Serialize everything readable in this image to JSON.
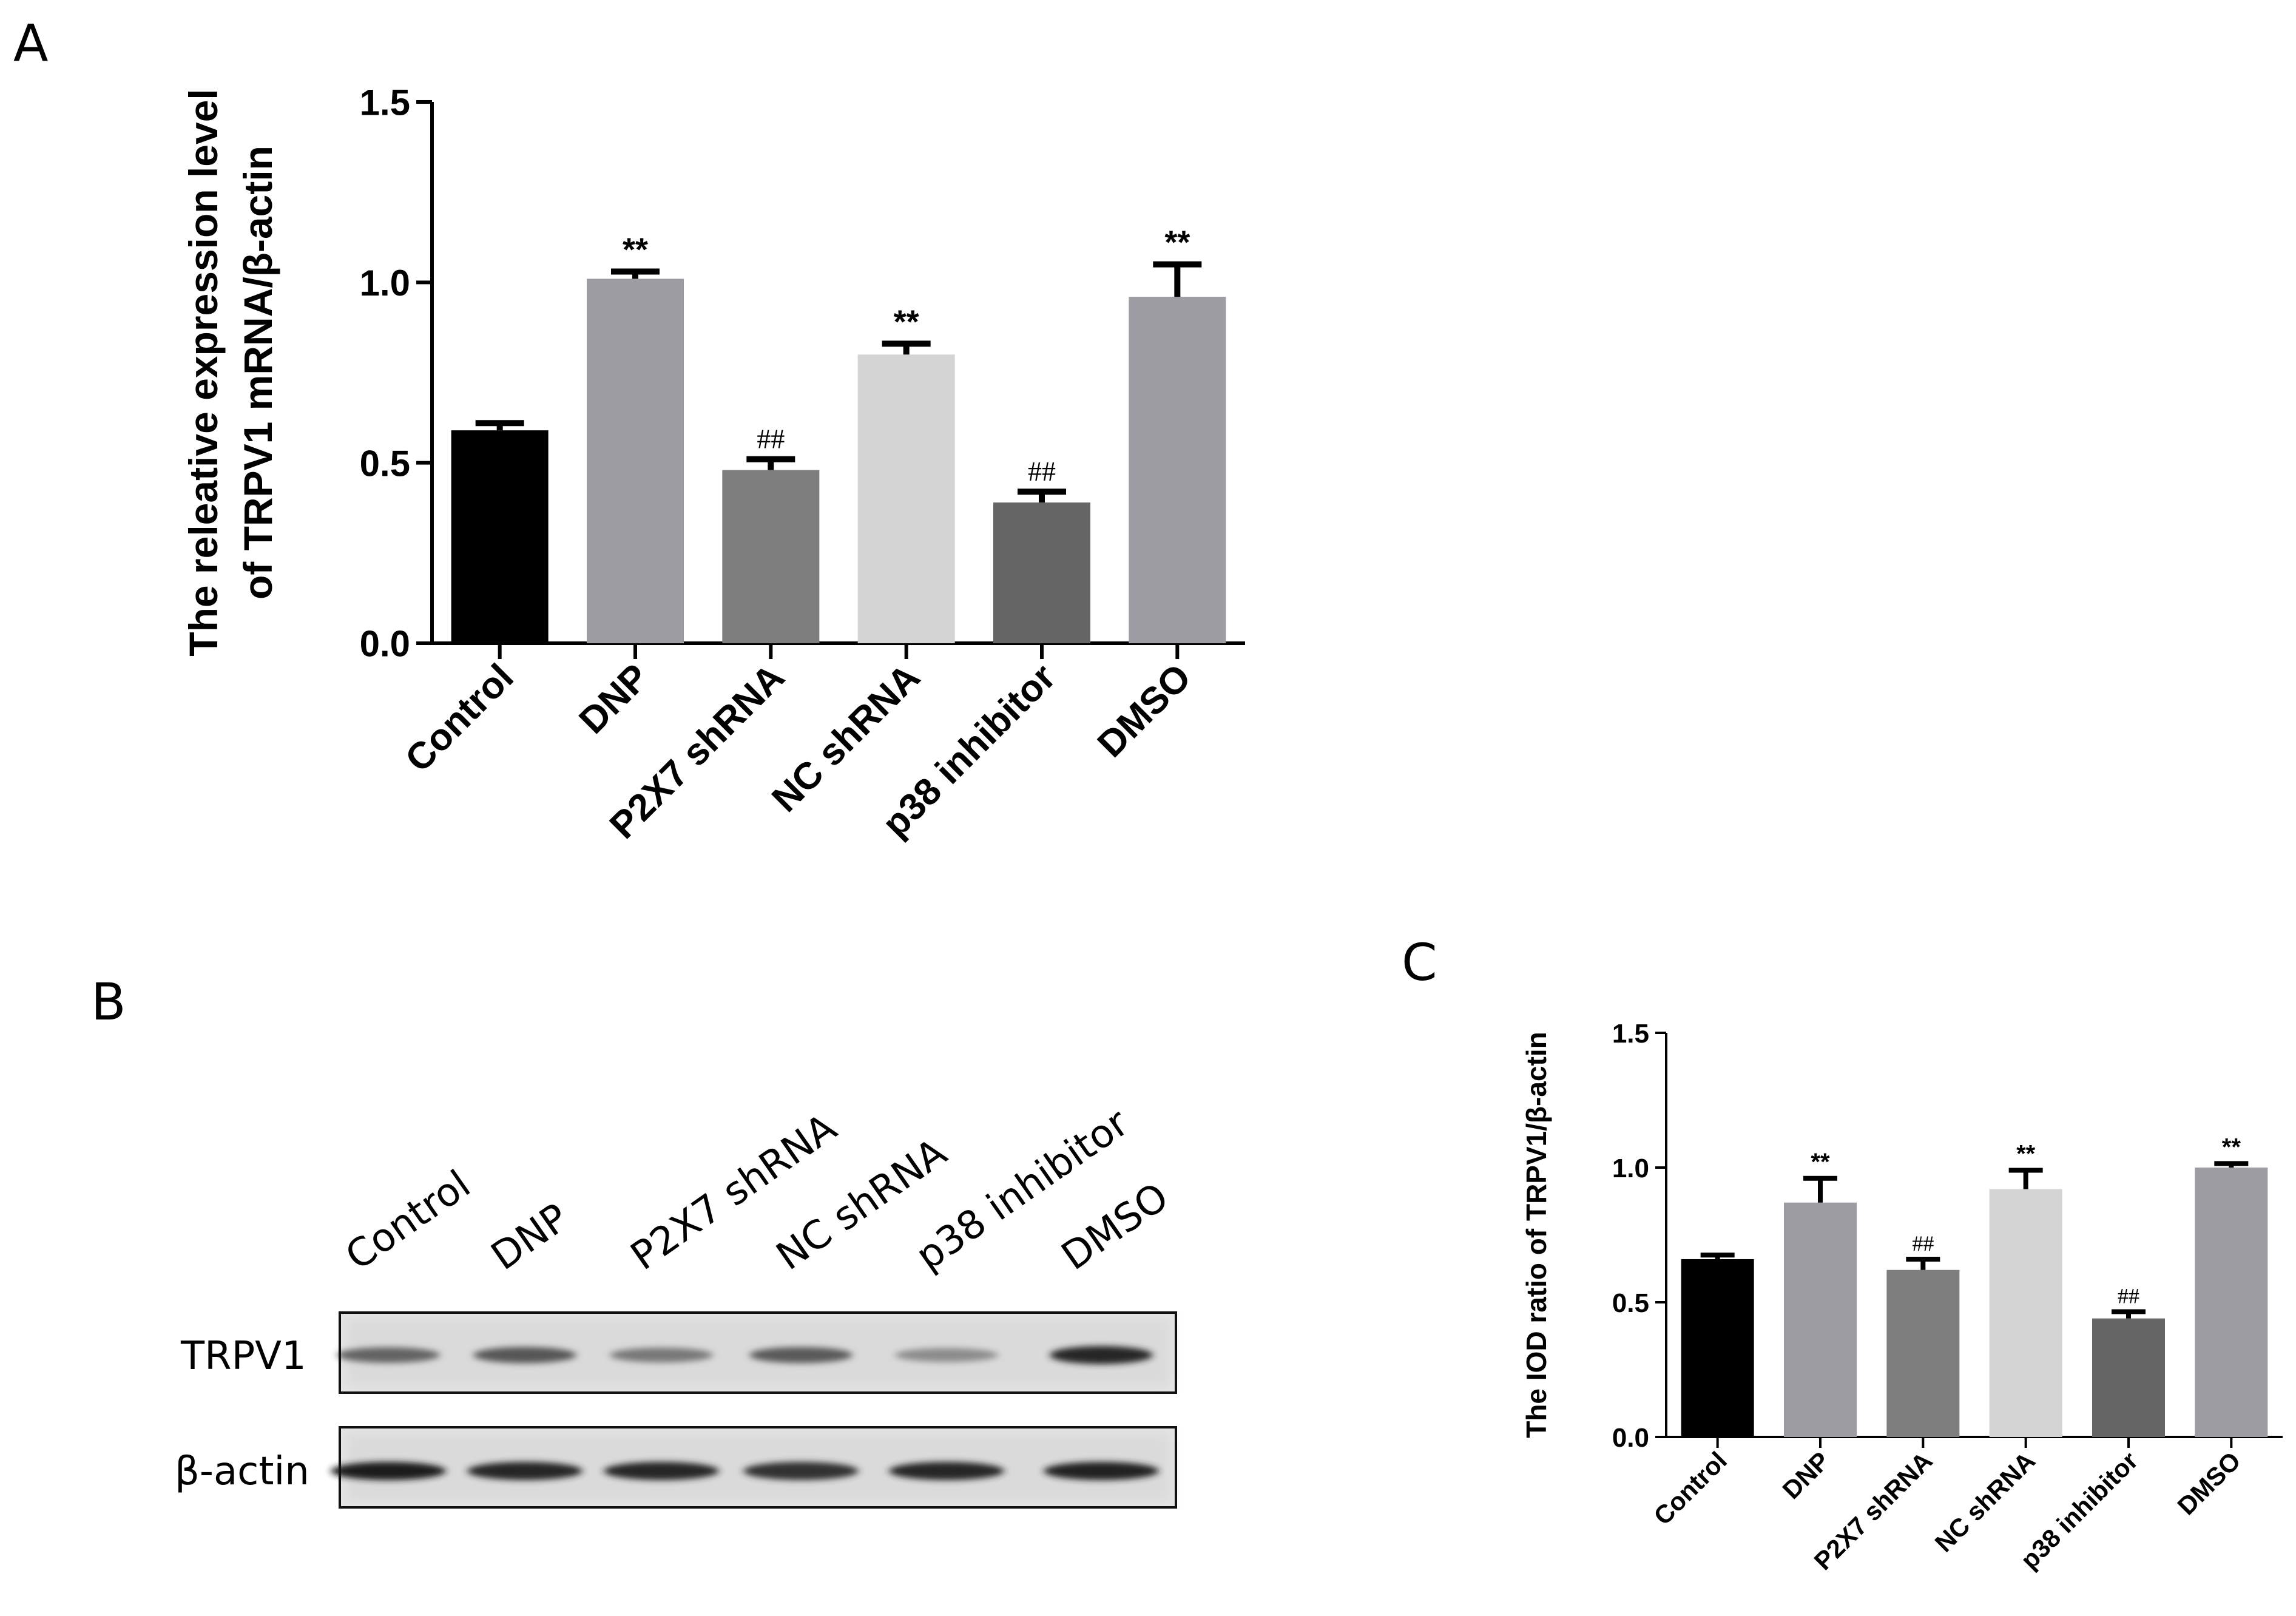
{
  "panels": {
    "a": "A",
    "b": "B",
    "c": "C"
  },
  "colors": {
    "Control": "#000000",
    "DNP": "#9d9ca2",
    "P2X7 shRNA": "#7e7e7e",
    "NC shRNA": "#d4d4d4",
    "p38 inhibitor": "#656565",
    "DMSO": "#9d9ca2"
  },
  "chart_data": [
    {
      "panel": "A",
      "type": "bar",
      "categories": [
        "Control",
        "DNP",
        "P2X7 shRNA",
        "NC shRNA",
        "p38 inhibitor",
        "DMSO"
      ],
      "values": [
        0.59,
        1.01,
        0.48,
        0.8,
        0.39,
        0.96
      ],
      "errors": [
        0.02,
        0.02,
        0.03,
        0.03,
        0.03,
        0.09
      ],
      "annotations": [
        "",
        "**",
        "##",
        "**",
        "##",
        "**"
      ],
      "ylabel": [
        "The releative expression level",
        "of TRPV1 mRNA/β-actin"
      ],
      "ylim": [
        0,
        1.5
      ],
      "yticks": [
        "0.0",
        "0.5",
        "1.0",
        "1.5"
      ]
    },
    {
      "panel": "C",
      "type": "bar",
      "categories": [
        "Control",
        "DNP",
        "P2X7 shRNA",
        "NC shRNA",
        "p38 inhibitor",
        "DMSO"
      ],
      "values": [
        0.66,
        0.87,
        0.62,
        0.92,
        0.44,
        1.0
      ],
      "errors": [
        0.015,
        0.09,
        0.04,
        0.07,
        0.025,
        0.015
      ],
      "annotations": [
        "",
        "**",
        "##",
        "**",
        "##",
        "**"
      ],
      "ylabel": [
        "The IOD ratio of TRPV1/β-actin"
      ],
      "ylim": [
        0,
        1.5
      ],
      "yticks": [
        "0.0",
        "0.5",
        "1.0",
        "1.5"
      ]
    }
  ],
  "blot": {
    "lanes": [
      "Control",
      "DNP",
      "P2X7 shRNA",
      "NC shRNA",
      "p38 inhibitor",
      "DMSO"
    ],
    "rows": [
      {
        "label": "TRPV1",
        "intensity": [
          0.55,
          0.62,
          0.45,
          0.6,
          0.35,
          0.85
        ]
      },
      {
        "label": "β-actin",
        "intensity": [
          0.9,
          0.85,
          0.85,
          0.8,
          0.85,
          0.88
        ]
      }
    ]
  }
}
